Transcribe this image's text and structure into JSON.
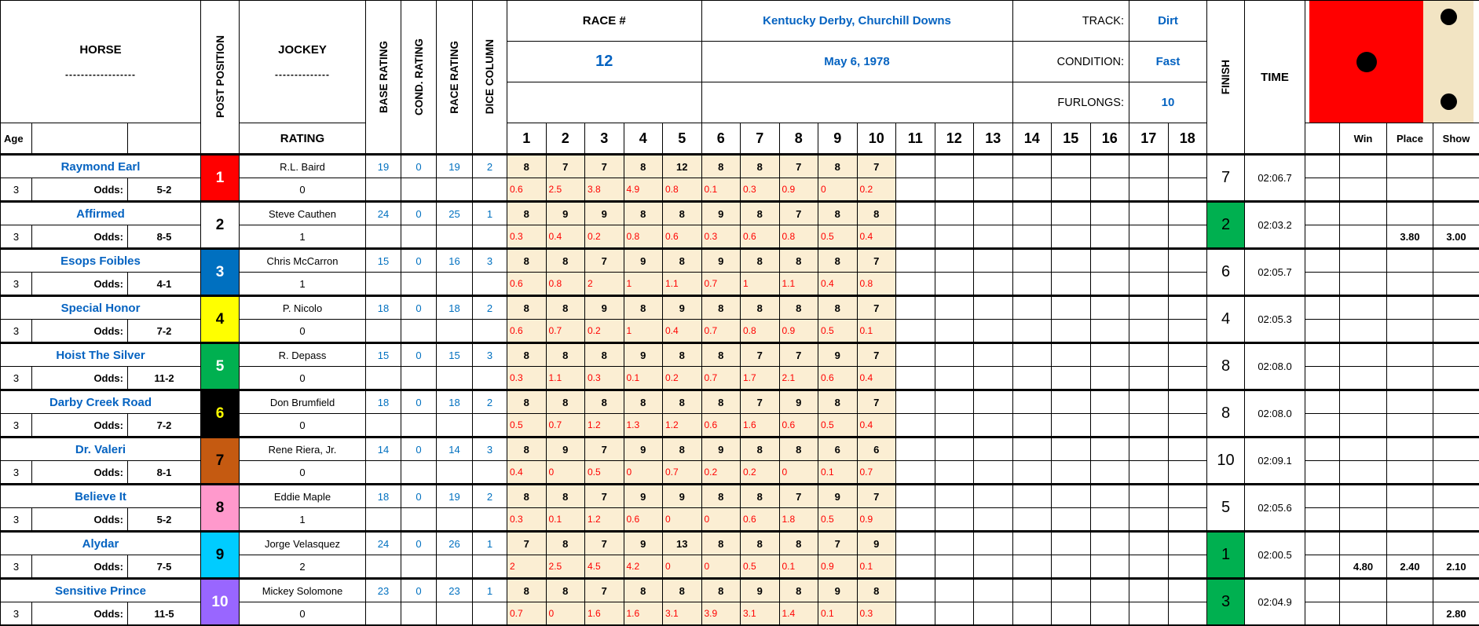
{
  "colors": {
    "accent_blue": "#0563C1",
    "value_blue": "#0070C0",
    "margin_red": "#FF0000",
    "finish_green": "#00B050",
    "cell_tan": "#FBEED3",
    "die_red": "#FF0000",
    "die_strip_tan": "#F2E4C3",
    "dot_black": "#000000"
  },
  "header": {
    "horse_label": "HORSE",
    "horse_dashes": "------------------",
    "age_label": "Age",
    "post_position_label": "POST POSITION",
    "jockey_label": "JOCKEY",
    "jockey_dashes": "--------------",
    "rating_label": "RATING",
    "base_rating_label": "BASE RATING",
    "cond_rating_label": "COND. RATING",
    "race_rating_label": "RACE RATING",
    "dice_column_label": "DICE COLUMN",
    "race_no_label": "RACE #",
    "race_no": "12",
    "event": "Kentucky Derby, Churchill Downs",
    "date": "May 6, 1978",
    "track_label": "TRACK:",
    "track": "Dirt",
    "condition_label": "CONDITION:",
    "condition": "Fast",
    "furlongs_label": "FURLONGS:",
    "furlongs": "10",
    "finish_label": "FINISH",
    "time_label": "TIME",
    "win_label": "Win",
    "place_label": "Place",
    "show_label": "Show",
    "odds_label": "Odds:",
    "race_cols": [
      "1",
      "2",
      "3",
      "4",
      "5",
      "6",
      "7",
      "8",
      "9",
      "10",
      "11",
      "12",
      "13",
      "14",
      "15",
      "16",
      "17",
      "18"
    ]
  },
  "dice_panel": {
    "red_die_face": "1",
    "strip_die_dots": "2"
  },
  "horses": [
    {
      "name": "Raymond Earl",
      "age": "3",
      "odds": "5-2",
      "post": "1",
      "post_bg": "#FF0000",
      "post_fg": "#FFFFFF",
      "jockey": "R.L. Baird",
      "jockey_rating": "0",
      "base": "19",
      "cond": "0",
      "race": "19",
      "dice": "2",
      "speeds": [
        "8",
        "7",
        "7",
        "8",
        "12",
        "8",
        "8",
        "7",
        "8",
        "7"
      ],
      "margins": [
        "0.6",
        "2.5",
        "3.8",
        "4.9",
        "0.8",
        "0.1",
        "0.3",
        "0.9",
        "0",
        "0.2"
      ],
      "finish": "7",
      "finish_bg": "#FFFFFF",
      "time": "02:06.7",
      "win": "",
      "place": "",
      "show": ""
    },
    {
      "name": "Affirmed",
      "age": "3",
      "odds": "8-5",
      "post": "2",
      "post_bg": "#FFFFFF",
      "post_fg": "#000000",
      "jockey": "Steve Cauthen",
      "jockey_rating": "1",
      "base": "24",
      "cond": "0",
      "race": "25",
      "dice": "1",
      "speeds": [
        "8",
        "9",
        "9",
        "8",
        "8",
        "9",
        "8",
        "7",
        "8",
        "8"
      ],
      "margins": [
        "0.3",
        "0.4",
        "0.2",
        "0.8",
        "0.6",
        "0.3",
        "0.6",
        "0.8",
        "0.5",
        "0.4"
      ],
      "finish": "2",
      "finish_bg": "#00B050",
      "time": "02:03.2",
      "win": "",
      "place": "3.80",
      "show": "3.00"
    },
    {
      "name": "Esops Foibles",
      "age": "3",
      "odds": "4-1",
      "post": "3",
      "post_bg": "#0070C0",
      "post_fg": "#FFFFFF",
      "jockey": "Chris McCarron",
      "jockey_rating": "1",
      "base": "15",
      "cond": "0",
      "race": "16",
      "dice": "3",
      "speeds": [
        "8",
        "8",
        "7",
        "9",
        "8",
        "9",
        "8",
        "8",
        "8",
        "7"
      ],
      "margins": [
        "0.6",
        "0.8",
        "2",
        "1",
        "1.1",
        "0.7",
        "1",
        "1.1",
        "0.4",
        "0.8"
      ],
      "finish": "6",
      "finish_bg": "#FFFFFF",
      "time": "02:05.7",
      "win": "",
      "place": "",
      "show": ""
    },
    {
      "name": "Special Honor",
      "age": "3",
      "odds": "7-2",
      "post": "4",
      "post_bg": "#FFFF00",
      "post_fg": "#000000",
      "jockey": "P. Nicolo",
      "jockey_rating": "0",
      "base": "18",
      "cond": "0",
      "race": "18",
      "dice": "2",
      "speeds": [
        "8",
        "8",
        "9",
        "8",
        "9",
        "8",
        "8",
        "8",
        "8",
        "7"
      ],
      "margins": [
        "0.6",
        "0.7",
        "0.2",
        "1",
        "0.4",
        "0.7",
        "0.8",
        "0.9",
        "0.5",
        "0.1"
      ],
      "finish": "4",
      "finish_bg": "#FFFFFF",
      "time": "02:05.3",
      "win": "",
      "place": "",
      "show": ""
    },
    {
      "name": "Hoist The Silver",
      "age": "3",
      "odds": "11-2",
      "post": "5",
      "post_bg": "#00B050",
      "post_fg": "#FFFFFF",
      "jockey": "R. Depass",
      "jockey_rating": "0",
      "base": "15",
      "cond": "0",
      "race": "15",
      "dice": "3",
      "speeds": [
        "8",
        "8",
        "8",
        "9",
        "8",
        "8",
        "7",
        "7",
        "9",
        "7"
      ],
      "margins": [
        "0.3",
        "1.1",
        "0.3",
        "0.1",
        "0.2",
        "0.7",
        "1.7",
        "2.1",
        "0.6",
        "0.4"
      ],
      "finish": "8",
      "finish_bg": "#FFFFFF",
      "time": "02:08.0",
      "win": "",
      "place": "",
      "show": ""
    },
    {
      "name": "Darby Creek Road",
      "age": "3",
      "odds": "7-2",
      "post": "6",
      "post_bg": "#000000",
      "post_fg": "#FFFF00",
      "jockey": "Don Brumfield",
      "jockey_rating": "0",
      "base": "18",
      "cond": "0",
      "race": "18",
      "dice": "2",
      "speeds": [
        "8",
        "8",
        "8",
        "8",
        "8",
        "8",
        "7",
        "9",
        "8",
        "7"
      ],
      "margins": [
        "0.5",
        "0.7",
        "1.2",
        "1.3",
        "1.2",
        "0.6",
        "1.6",
        "0.6",
        "0.5",
        "0.4"
      ],
      "finish": "8",
      "finish_bg": "#FFFFFF",
      "time": "02:08.0",
      "win": "",
      "place": "",
      "show": ""
    },
    {
      "name": "Dr. Valeri",
      "age": "3",
      "odds": "8-1",
      "post": "7",
      "post_bg": "#C55A11",
      "post_fg": "#000000",
      "jockey": "Rene Riera, Jr.",
      "jockey_rating": "0",
      "base": "14",
      "cond": "0",
      "race": "14",
      "dice": "3",
      "speeds": [
        "8",
        "9",
        "7",
        "9",
        "8",
        "9",
        "8",
        "8",
        "6",
        "6"
      ],
      "margins": [
        "0.4",
        "0",
        "0.5",
        "0",
        "0.7",
        "0.2",
        "0.2",
        "0",
        "0.1",
        "0.7"
      ],
      "finish": "10",
      "finish_bg": "#FFFFFF",
      "time": "02:09.1",
      "win": "",
      "place": "",
      "show": ""
    },
    {
      "name": "Believe It",
      "age": "3",
      "odds": "5-2",
      "post": "8",
      "post_bg": "#FF99CC",
      "post_fg": "#000000",
      "jockey": "Eddie Maple",
      "jockey_rating": "1",
      "base": "18",
      "cond": "0",
      "race": "19",
      "dice": "2",
      "speeds": [
        "8",
        "8",
        "7",
        "9",
        "9",
        "8",
        "8",
        "7",
        "9",
        "7"
      ],
      "margins": [
        "0.3",
        "0.1",
        "1.2",
        "0.6",
        "0",
        "0",
        "0.6",
        "1.8",
        "0.5",
        "0.9"
      ],
      "finish": "5",
      "finish_bg": "#FFFFFF",
      "time": "02:05.6",
      "win": "",
      "place": "",
      "show": ""
    },
    {
      "name": "Alydar",
      "age": "3",
      "odds": "7-5",
      "post": "9",
      "post_bg": "#00CCFF",
      "post_fg": "#000000",
      "jockey": "Jorge Velasquez",
      "jockey_rating": "2",
      "base": "24",
      "cond": "0",
      "race": "26",
      "dice": "1",
      "speeds": [
        "7",
        "8",
        "7",
        "9",
        "13",
        "8",
        "8",
        "8",
        "7",
        "9"
      ],
      "margins": [
        "2",
        "2.5",
        "4.5",
        "4.2",
        "0",
        "0",
        "0.5",
        "0.1",
        "0.9",
        "0.1"
      ],
      "finish": "1",
      "finish_bg": "#00B050",
      "time": "02:00.5",
      "win": "4.80",
      "place": "2.40",
      "show": "2.10"
    },
    {
      "name": "Sensitive Prince",
      "age": "3",
      "odds": "11-5",
      "post": "10",
      "post_bg": "#9966FF",
      "post_fg": "#FFFFFF",
      "jockey": "Mickey Solomone",
      "jockey_rating": "0",
      "base": "23",
      "cond": "0",
      "race": "23",
      "dice": "1",
      "speeds": [
        "8",
        "8",
        "7",
        "8",
        "8",
        "8",
        "9",
        "8",
        "9",
        "8"
      ],
      "margins": [
        "0.7",
        "0",
        "1.6",
        "1.6",
        "3.1",
        "3.9",
        "3.1",
        "1.4",
        "0.1",
        "0.3"
      ],
      "finish": "3",
      "finish_bg": "#00B050",
      "time": "02:04.9",
      "win": "",
      "place": "",
      "show": "2.80"
    }
  ]
}
